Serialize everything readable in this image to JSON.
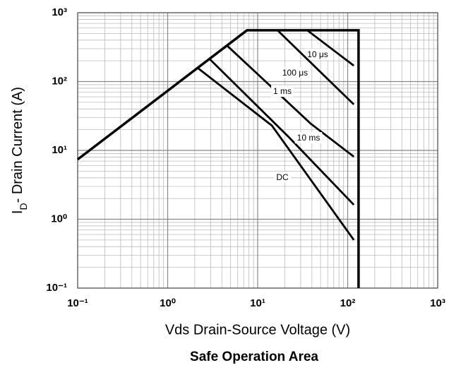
{
  "chart_data": {
    "type": "line",
    "title": "Safe Operation Area",
    "xlabel": "Vds Drain-Source Voltage (V)",
    "ylabel": "ID- Drain Current (A)",
    "xscale": "log",
    "yscale": "log",
    "grid": true,
    "color": "#000000",
    "xlim": [
      0.1,
      1000
    ],
    "ylim": [
      0.1,
      1000
    ],
    "xticks": [
      {
        "value": 0.1,
        "label": "10⁻¹"
      },
      {
        "value": 1,
        "label": "10⁰"
      },
      {
        "value": 10,
        "label": "10¹"
      },
      {
        "value": 100,
        "label": "10²"
      },
      {
        "value": 1000,
        "label": "10³"
      }
    ],
    "yticks": [
      {
        "value": 0.1,
        "label": "10⁻¹"
      },
      {
        "value": 1,
        "label": "10⁰"
      },
      {
        "value": 10,
        "label": "10¹"
      },
      {
        "value": 100,
        "label": "10²"
      },
      {
        "value": 1000,
        "label": "10³"
      }
    ],
    "series": [
      {
        "color": "#000000",
        "x": [
          0.1,
          7.6,
          132,
          132
        ],
        "values": [
          7.4,
          555,
          555,
          0.1
        ]
      },
      {
        "name": "10 μs",
        "color": "#000000",
        "x": [
          35.6,
          117
        ],
        "values": [
          555,
          170
        ]
      },
      {
        "name": "100 μs",
        "color": "#000000",
        "x": [
          16.6,
          117
        ],
        "values": [
          555,
          46.5
        ]
      },
      {
        "name": "1 ms",
        "color": "#000000",
        "x": [
          4.6,
          38.8,
          117
        ],
        "values": [
          330,
          24.5,
          8.1
        ]
      },
      {
        "name": "10 ms",
        "color": "#000000",
        "x": [
          2.93,
          22.5,
          117
        ],
        "values": [
          212,
          15.3,
          1.62
        ]
      },
      {
        "name": "DC",
        "color": "#000000",
        "x": [
          2.15,
          14.4,
          117
        ],
        "values": [
          158,
          22.9,
          0.5
        ]
      }
    ]
  }
}
